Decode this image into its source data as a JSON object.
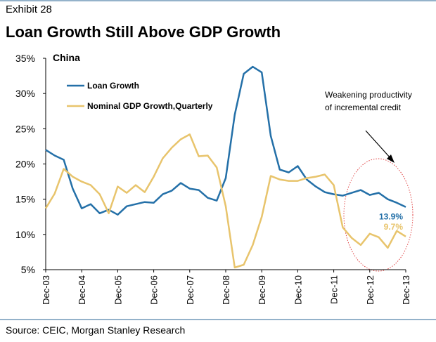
{
  "chart_data": {
    "type": "line",
    "title": "Exhibit 28",
    "subtitle": "Loan Growth Still Above GDP Growth",
    "source": "Source: CEIC, Morgan Stanley Research",
    "annotations": [
      "China",
      "Weakening productivity",
      "of incremental credit"
    ],
    "categories": [
      "Dec-03",
      null,
      null,
      null,
      "Dec-04",
      null,
      null,
      null,
      "Dec-05",
      null,
      null,
      null,
      "Dec-06",
      null,
      null,
      null,
      "Dec-07",
      null,
      null,
      null,
      "Dec-08",
      null,
      null,
      null,
      "Dec-09",
      null,
      null,
      null,
      "Dec-10",
      null,
      null,
      null,
      "Dec-11",
      null,
      null,
      null,
      "Dec-12",
      null,
      null,
      null,
      "Dec-13"
    ],
    "series": [
      {
        "name": "Loan Growth",
        "color": "#2470a8",
        "values": [
          22.0,
          21.2,
          20.6,
          16.5,
          13.7,
          14.3,
          13.0,
          13.5,
          12.8,
          14.0,
          14.3,
          14.6,
          14.5,
          15.7,
          16.2,
          17.3,
          16.5,
          16.3,
          15.2,
          14.8,
          18.0,
          27.0,
          32.8,
          33.8,
          33.0,
          24.0,
          19.2,
          18.8,
          19.7,
          17.8,
          16.8,
          16.0,
          15.7,
          15.5,
          15.9,
          16.3,
          15.6,
          15.9,
          15.0,
          14.5,
          13.9
        ],
        "value_labels": [
          null,
          null,
          null,
          null,
          null,
          null,
          null,
          null,
          null,
          null,
          null,
          null,
          null,
          null,
          null,
          null,
          null,
          null,
          null,
          null,
          null,
          null,
          null,
          null,
          null,
          null,
          null,
          null,
          null,
          null,
          null,
          null,
          null,
          null,
          null,
          null,
          null,
          null,
          null,
          null,
          "13.9%"
        ]
      },
      {
        "name": "Nominal GDP Growth,Quarterly",
        "color": "#e8c46c",
        "values": [
          13.7,
          15.8,
          19.3,
          18.2,
          17.5,
          17.0,
          15.7,
          13.0,
          16.8,
          15.9,
          17.0,
          16.0,
          18.2,
          20.8,
          22.3,
          23.5,
          24.2,
          21.1,
          21.2,
          19.5,
          14.0,
          5.3,
          5.7,
          8.5,
          12.5,
          18.3,
          17.8,
          17.6,
          17.6,
          18.0,
          18.2,
          18.5,
          17.0,
          11.0,
          9.5,
          8.5,
          10.1,
          9.6,
          8.1,
          10.5,
          9.7
        ],
        "value_labels": [
          null,
          null,
          null,
          null,
          null,
          null,
          null,
          null,
          null,
          null,
          null,
          null,
          null,
          null,
          null,
          null,
          null,
          null,
          null,
          null,
          null,
          null,
          null,
          null,
          null,
          null,
          null,
          null,
          null,
          null,
          null,
          null,
          null,
          null,
          null,
          null,
          null,
          null,
          null,
          null,
          "9.7%"
        ]
      }
    ],
    "ylim": [
      5,
      35
    ],
    "yticks": [
      {
        "value": 5,
        "label": "5%"
      },
      {
        "value": 10,
        "label": "10%"
      },
      {
        "value": 15,
        "label": "15%"
      },
      {
        "value": 20,
        "label": "20%"
      },
      {
        "value": 25,
        "label": "25%"
      },
      {
        "value": 30,
        "label": "30%"
      },
      {
        "value": 35,
        "label": "35%"
      }
    ],
    "grid": false
  }
}
